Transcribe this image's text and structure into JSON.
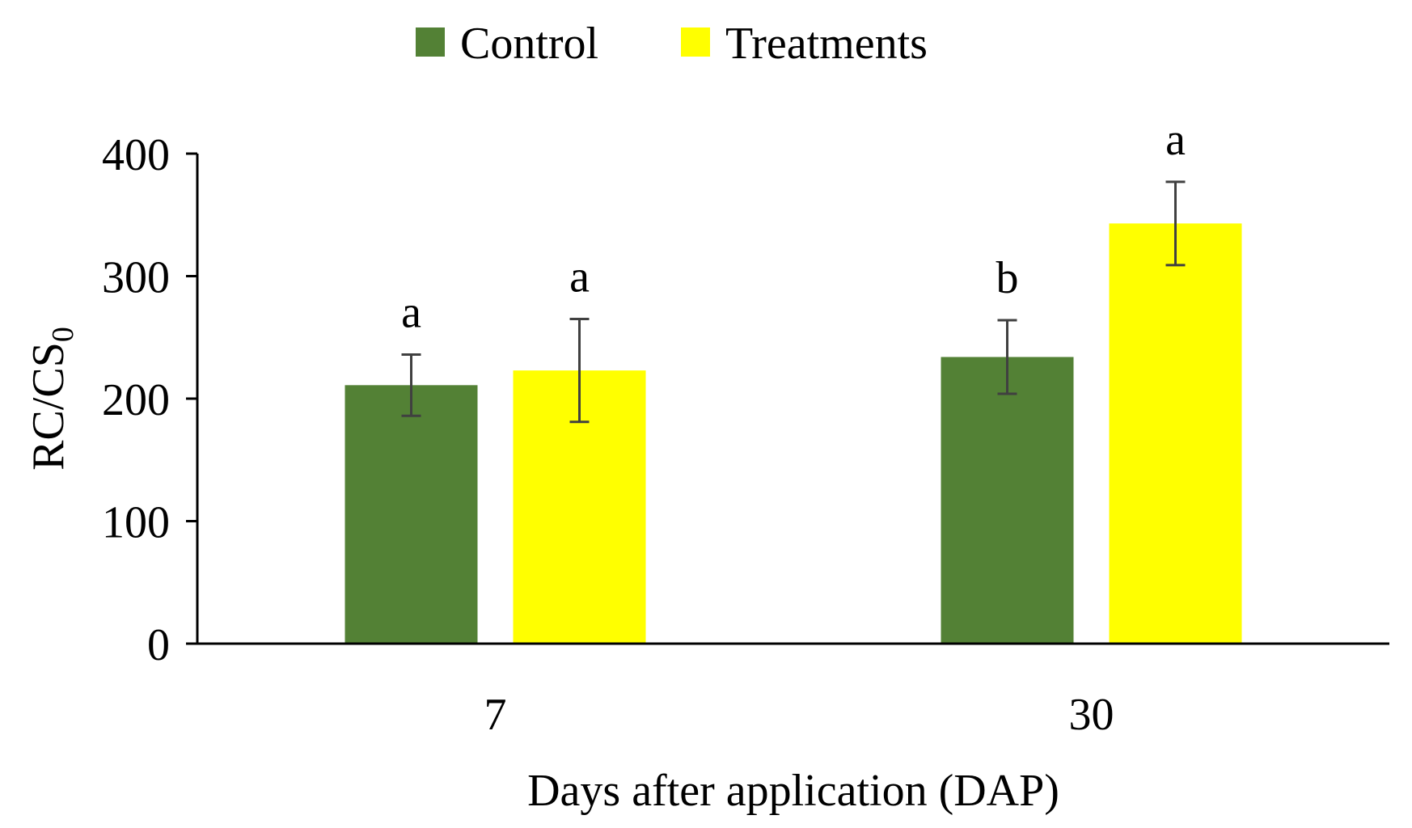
{
  "chart_data": {
    "type": "bar",
    "title": "",
    "xlabel": "Days after application (DAP)",
    "ylabel": "RC/CS",
    "ylabel_subscript": "0",
    "categories": [
      "7",
      "30"
    ],
    "ylim": [
      0,
      400
    ],
    "yticks": [
      0,
      100,
      200,
      300,
      400
    ],
    "series": [
      {
        "name": "Control",
        "color": "#538135",
        "values": [
          211,
          234
        ],
        "errors": [
          25,
          30
        ],
        "significance": [
          "a",
          "b"
        ]
      },
      {
        "name": "Treatments",
        "color": "#FFFF00",
        "values": [
          223,
          343
        ],
        "errors": [
          42,
          34
        ],
        "significance": [
          "a",
          "a"
        ]
      }
    ],
    "legend_position": "top-center",
    "grid": false
  }
}
